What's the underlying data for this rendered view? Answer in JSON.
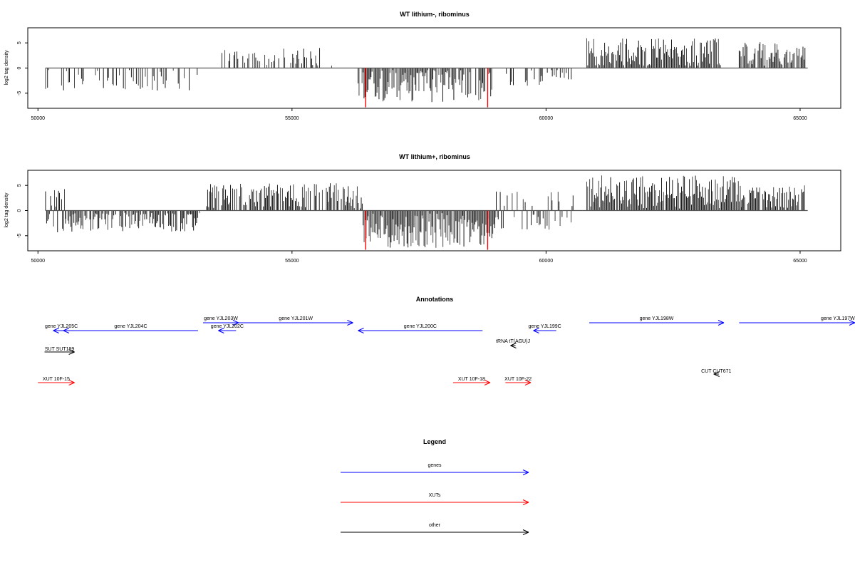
{
  "chart_data": [
    {
      "type": "bar",
      "title": "WT lithium-, ribominus",
      "xlabel": "",
      "ylabel": "log2 tag density",
      "xlim": [
        49800,
        65800
      ],
      "ylim": [
        -8,
        8
      ],
      "xticks": [
        50000,
        55000,
        60000,
        65000
      ],
      "yticks": [
        -5,
        0,
        5
      ],
      "baseline": {
        "from": 50150,
        "to": 65150
      },
      "highlight_color": "#ff0000",
      "highlights": [
        {
          "x": 56450,
          "y": -7.8
        },
        {
          "x": 58850,
          "y": -7.8
        }
      ],
      "density_runs": [
        {
          "from": 50150,
          "to": 53200,
          "sign": "neg",
          "gap": 0.55,
          "maxAbs": 4.5,
          "density": 0.28
        },
        {
          "from": 53600,
          "to": 55900,
          "sign": "pos",
          "gap": 0.4,
          "maxAbs": 4.0,
          "density": 0.3
        },
        {
          "from": 56300,
          "to": 58950,
          "sign": "neg",
          "gap": 0.3,
          "maxAbs": 6.8,
          "density": 0.85
        },
        {
          "from": 59200,
          "to": 60500,
          "sign": "neg",
          "gap": 0.55,
          "maxAbs": 3.5,
          "density": 0.3
        },
        {
          "from": 60800,
          "to": 63450,
          "sign": "pos",
          "gap": 0.2,
          "maxAbs": 6.0,
          "density": 0.95
        },
        {
          "from": 63800,
          "to": 65100,
          "sign": "pos",
          "gap": 0.35,
          "maxAbs": 5.4,
          "density": 0.75
        }
      ],
      "seed": 7
    },
    {
      "type": "bar",
      "title": "WT lithium+, ribominus",
      "xlabel": "",
      "ylabel": "log2 tag density",
      "xlim": [
        49800,
        65800
      ],
      "ylim": [
        -8,
        8
      ],
      "xticks": [
        50000,
        55000,
        60000,
        65000
      ],
      "yticks": [
        -5,
        0,
        5
      ],
      "baseline": {
        "from": 50150,
        "to": 65150
      },
      "highlight_color": "#ff0000",
      "highlights": [
        {
          "x": 56450,
          "y": -7.8
        },
        {
          "x": 58850,
          "y": -7.8
        }
      ],
      "density_runs": [
        {
          "from": 50150,
          "to": 50550,
          "sign": "both",
          "gap": 0.2,
          "maxAbs": 4.5,
          "density": 0.8
        },
        {
          "from": 50550,
          "to": 53200,
          "sign": "neg",
          "gap": 0.3,
          "maxAbs": 4.2,
          "density": 0.8
        },
        {
          "from": 53300,
          "to": 56400,
          "sign": "pos",
          "gap": 0.25,
          "maxAbs": 5.5,
          "density": 0.7
        },
        {
          "from": 56400,
          "to": 59000,
          "sign": "neg",
          "gap": 0.2,
          "maxAbs": 7.4,
          "density": 0.95
        },
        {
          "from": 59000,
          "to": 60550,
          "sign": "both",
          "gap": 0.3,
          "maxAbs": 4.0,
          "density": 0.55
        },
        {
          "from": 60800,
          "to": 63850,
          "sign": "pos",
          "gap": 0.15,
          "maxAbs": 7.0,
          "density": 0.95
        },
        {
          "from": 63850,
          "to": 65100,
          "sign": "pos",
          "gap": 0.25,
          "maxAbs": 5.0,
          "density": 0.85
        }
      ],
      "seed": 19
    }
  ],
  "annotations": {
    "title": "Annotations",
    "items": [
      {
        "label": "gene YJL205C",
        "from": 50620,
        "to": 50300,
        "color": "#0000ff",
        "row": "genes_low"
      },
      {
        "label": "gene YJL204C",
        "from": 53150,
        "to": 50500,
        "color": "#0000ff",
        "row": "genes_low"
      },
      {
        "label": "gene YJL203W",
        "from": 53250,
        "to": 53950,
        "color": "#0000ff",
        "row": "genes_high"
      },
      {
        "label": "gene YJL202C",
        "from": 53900,
        "to": 53550,
        "color": "#0000ff",
        "row": "genes_low"
      },
      {
        "label": "gene YJL201W",
        "from": 53950,
        "to": 56200,
        "color": "#0000ff",
        "row": "genes_high"
      },
      {
        "label": "gene YJL200C",
        "from": 58750,
        "to": 56300,
        "color": "#0000ff",
        "row": "genes_low"
      },
      {
        "label": "gene YJL199C",
        "from": 60200,
        "to": 59750,
        "color": "#0000ff",
        "row": "genes_low"
      },
      {
        "label": "gene YJL198W",
        "from": 60850,
        "to": 63500,
        "color": "#0000ff",
        "row": "genes_high"
      },
      {
        "label": "gene YJL197W",
        "from": 63800,
        "to": 66200,
        "color": "#0000ff",
        "row": "genes_high"
      },
      {
        "label": "tRNA tT(AGU)J",
        "from": 59400,
        "to": 59300,
        "color": "#000000",
        "row": "trna"
      },
      {
        "label": "SUT SUT199",
        "from": 50130,
        "to": 50720,
        "color": "#000000",
        "row": "sut"
      },
      {
        "label": "CUT CUT671",
        "from": 63400,
        "to": 63300,
        "color": "#000000",
        "row": "cut"
      },
      {
        "label": "XUT 10F-15",
        "from": 50000,
        "to": 50720,
        "color": "#ff0000",
        "row": "xut"
      },
      {
        "label": "XUT 10F-18",
        "from": 58170,
        "to": 58900,
        "color": "#ff0000",
        "row": "xut"
      },
      {
        "label": "XUT 10F-22",
        "from": 59200,
        "to": 59700,
        "color": "#ff0000",
        "row": "xut"
      }
    ]
  },
  "legend": {
    "title": "Legend",
    "items": [
      {
        "label": "genes",
        "color": "#0000ff"
      },
      {
        "label": "XUTs",
        "color": "#ff0000"
      },
      {
        "label": "other",
        "color": "#000000"
      }
    ]
  }
}
